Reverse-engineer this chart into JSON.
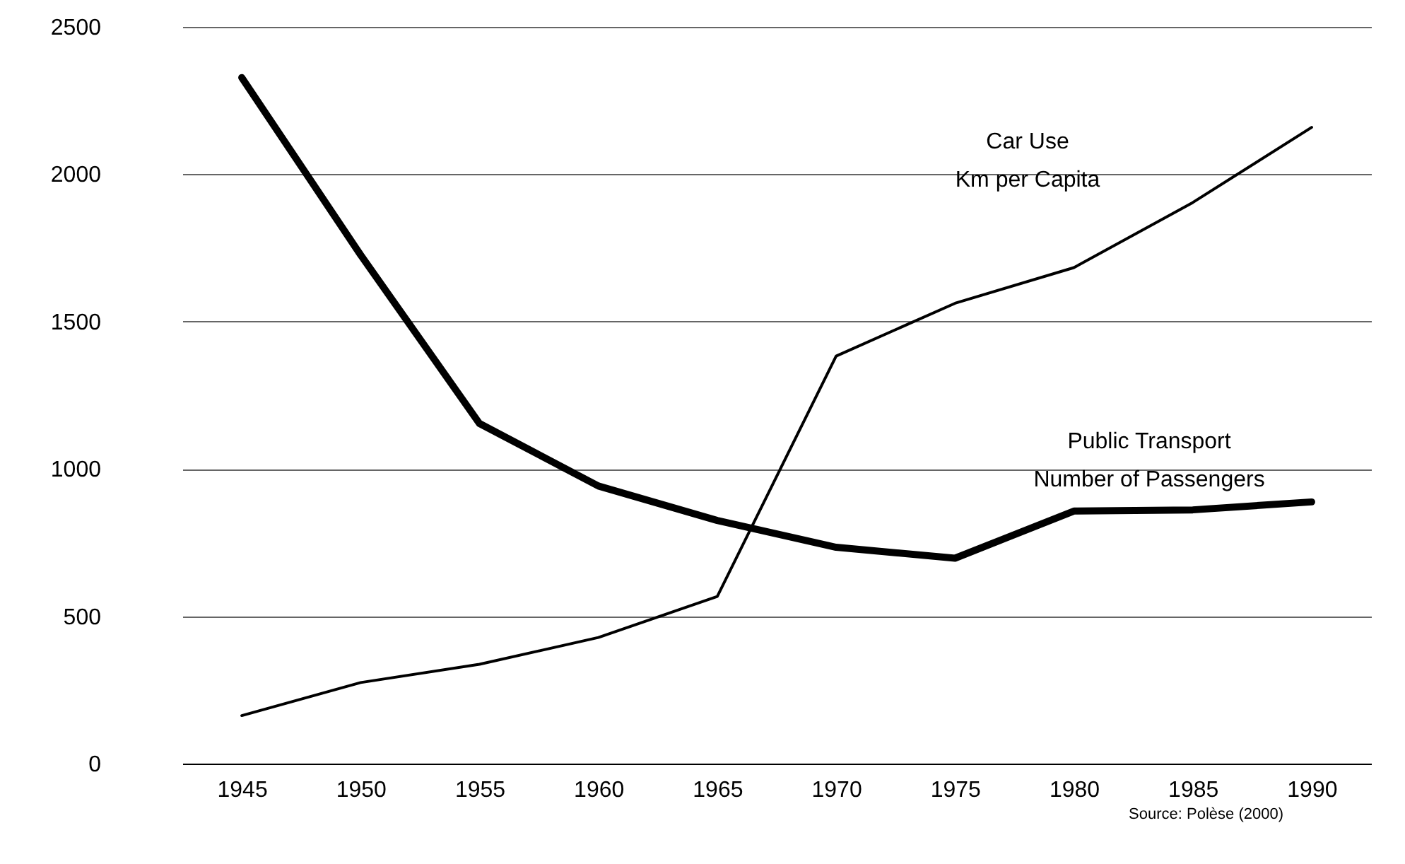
{
  "chart_data": {
    "type": "line",
    "categories": [
      "1945",
      "1950",
      "1955",
      "1960",
      "1965",
      "1970",
      "1975",
      "1980",
      "1985",
      "1990"
    ],
    "series": [
      {
        "color": "#000000",
        "values": [
          163,
          275,
          337,
          428,
          567,
          1383,
          1562,
          1683,
          1904,
          2159
        ]
      },
      {
        "color": "#000000",
        "values": [
          2328,
          1726,
          1154,
          942,
          825,
          734,
          697,
          857,
          861,
          888
        ]
      }
    ],
    "ylim": [
      0,
      2500
    ],
    "yticks": [
      0,
      500,
      1000,
      1500,
      2000,
      2500
    ],
    "grid": "y",
    "marker": "none",
    "line_style": "solid",
    "annotations": [
      "Car Use\nKm per Capita",
      "Public Transport\nNumber of Passengers",
      "Source: Polèse (2000)"
    ]
  }
}
